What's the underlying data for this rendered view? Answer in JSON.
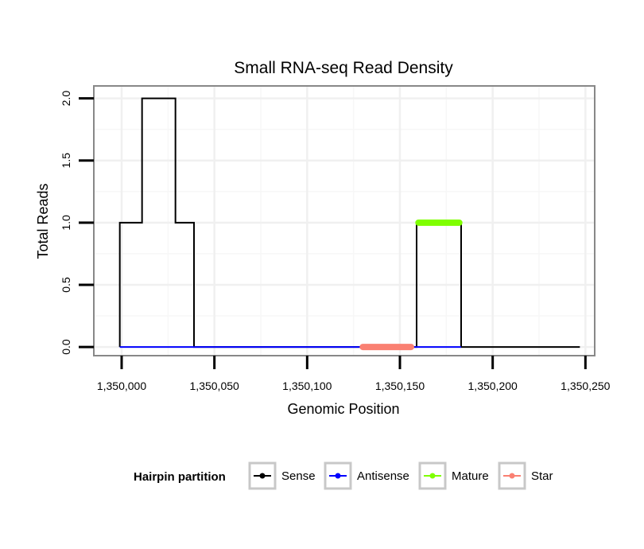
{
  "chart_data": {
    "type": "line",
    "title": "Small RNA-seq Read Density",
    "xlabel": "Genomic Position",
    "ylabel": "Total Reads",
    "xlim": [
      1349985,
      1350255
    ],
    "ylim": [
      -0.07,
      2.1
    ],
    "x_ticks": [
      1350000,
      1350050,
      1350100,
      1350150,
      1350200,
      1350250
    ],
    "x_tick_labels": [
      "1,350,000",
      "1,350,050",
      "1,350,100",
      "1,350,150",
      "1,350,200",
      "1,350,250"
    ],
    "y_ticks": [
      0,
      0.5,
      1,
      1.5,
      2
    ],
    "y_tick_labels": [
      "0.0",
      "0.5",
      "1.0",
      "1.5",
      "2.0"
    ],
    "grid": true,
    "legend_position": "bottom",
    "legend": {
      "title": "Hairpin partition",
      "items": [
        {
          "label": "Sense",
          "color": "#000000"
        },
        {
          "label": "Antisense",
          "color": "#0000ff"
        },
        {
          "label": "Mature",
          "color": "#7fff00"
        },
        {
          "label": "Star",
          "color": "#fa8072"
        }
      ]
    },
    "series": [
      {
        "name": "Sense",
        "color": "#000000",
        "x": [
          1349999,
          1349999,
          1350011,
          1350011,
          1350029,
          1350029,
          1350039,
          1350039,
          1350159,
          1350159,
          1350183,
          1350183,
          1350247
        ],
        "values": [
          0,
          1,
          1,
          2,
          2,
          1,
          1,
          0,
          0,
          1,
          1,
          0,
          0
        ]
      },
      {
        "name": "Antisense",
        "color": "#0000ff",
        "x": [
          1349999,
          1350183
        ],
        "values": [
          0,
          0
        ]
      },
      {
        "name": "Mature",
        "color": "#7fff00",
        "x": [
          1350160,
          1350182
        ],
        "values": [
          1,
          1
        ]
      },
      {
        "name": "Star",
        "color": "#fa8072",
        "x": [
          1350130,
          1350156
        ],
        "values": [
          0,
          0
        ]
      }
    ]
  }
}
